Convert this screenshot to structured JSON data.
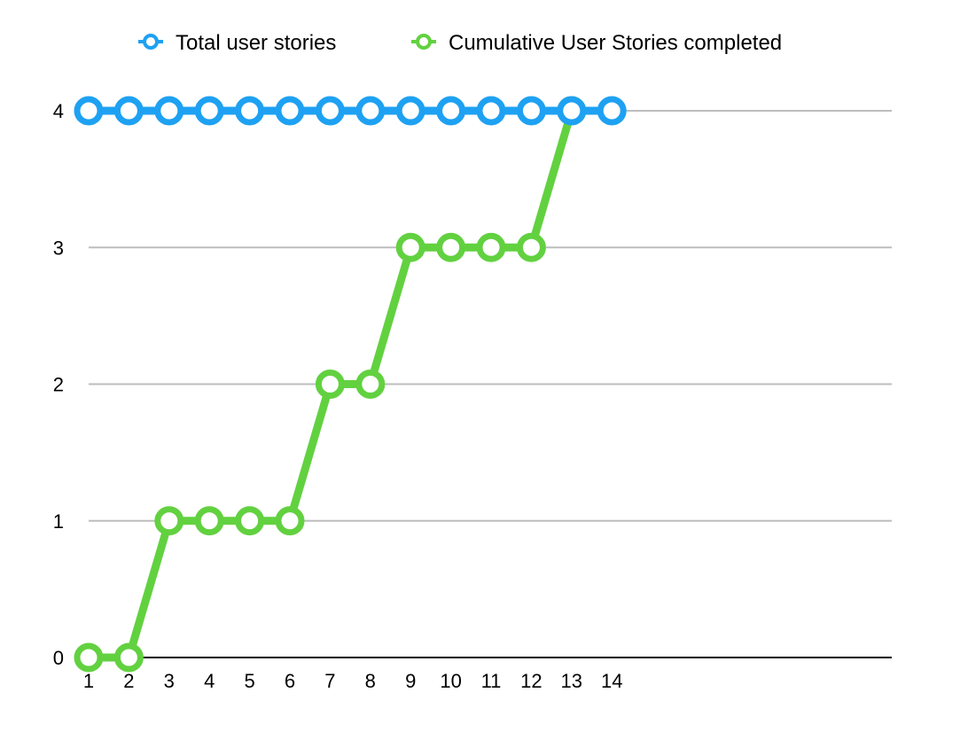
{
  "chart_data": {
    "type": "line",
    "x": [
      1,
      2,
      3,
      4,
      5,
      6,
      7,
      8,
      9,
      10,
      11,
      12,
      13,
      14
    ],
    "x_tick_labels": [
      "1",
      "2",
      "3",
      "4",
      "5",
      "6",
      "7",
      "8",
      "9",
      "10",
      "11",
      "12",
      "13",
      "14"
    ],
    "y_tick_labels": [
      "0",
      "1",
      "2",
      "3",
      "4"
    ],
    "ylim": [
      0,
      4
    ],
    "grid": true,
    "legend_placement": "top-center",
    "series": [
      {
        "name": "Total user stories",
        "color": "#1ea1f2",
        "values": [
          4,
          4,
          4,
          4,
          4,
          4,
          4,
          4,
          4,
          4,
          4,
          4,
          4,
          4
        ]
      },
      {
        "name": "Cumulative User Stories completed",
        "color": "#62d140",
        "values": [
          0,
          0,
          1,
          1,
          1,
          1,
          2,
          2,
          3,
          3,
          3,
          3,
          4,
          null
        ]
      }
    ]
  }
}
